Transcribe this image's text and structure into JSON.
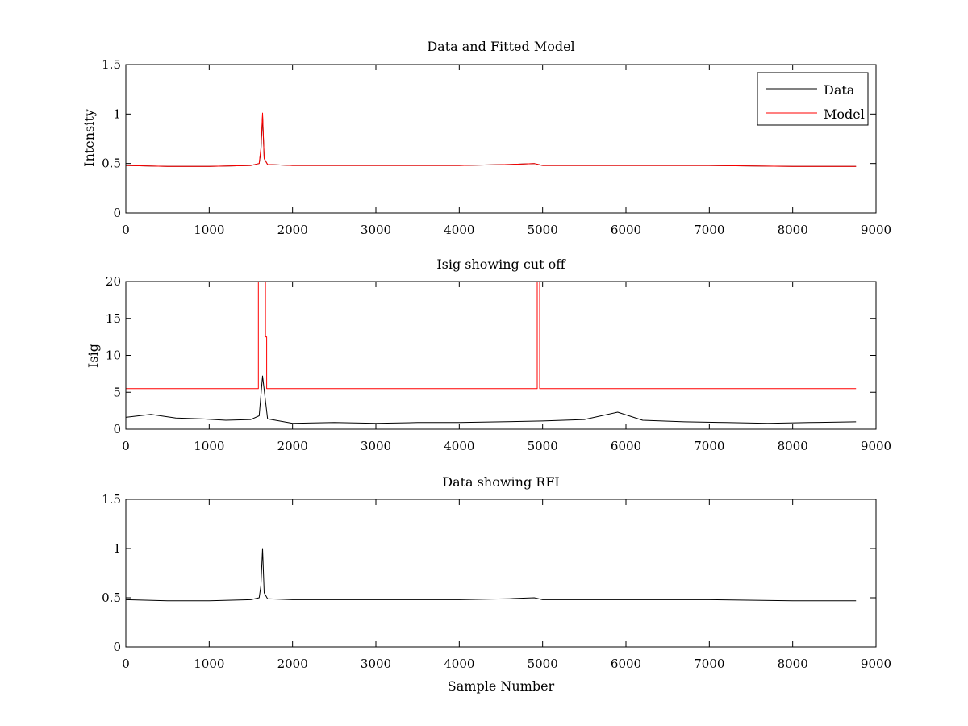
{
  "chart_data": [
    {
      "type": "line",
      "title": "Data and Fitted Model",
      "xlabel": "",
      "ylabel": "Intensity",
      "xlim": [
        0,
        9000
      ],
      "ylim": [
        0,
        1.5
      ],
      "xticks": [
        0,
        1000,
        2000,
        3000,
        4000,
        5000,
        6000,
        7000,
        8000,
        9000
      ],
      "xtick_labels": [
        "0",
        "1000",
        "2000",
        "3000",
        "4000",
        "5000",
        "6000",
        "7000",
        "8000",
        "9000"
      ],
      "yticks": [
        0,
        0.5,
        1,
        1.5
      ],
      "ytick_labels": [
        "0",
        "0.5",
        "1",
        "1.5"
      ],
      "grid": false,
      "legend": {
        "position": "top-right",
        "entries": [
          "Data",
          "Model"
        ]
      },
      "series": [
        {
          "name": "Data",
          "color": "#000000",
          "x": [
            0,
            500,
            1000,
            1500,
            1600,
            1620,
            1640,
            1660,
            1700,
            2000,
            3000,
            4000,
            4600,
            4900,
            5000,
            6000,
            7000,
            8000,
            8760
          ],
          "y": [
            0.48,
            0.47,
            0.47,
            0.48,
            0.5,
            0.62,
            0.98,
            0.55,
            0.49,
            0.48,
            0.48,
            0.48,
            0.49,
            0.5,
            0.48,
            0.48,
            0.48,
            0.47,
            0.47
          ]
        },
        {
          "name": "Model",
          "color": "#ff0000",
          "x": [
            0,
            500,
            1000,
            1500,
            1600,
            1620,
            1640,
            1660,
            1700,
            2000,
            3000,
            4000,
            4600,
            4900,
            5000,
            6000,
            7000,
            8000,
            8760
          ],
          "y": [
            0.48,
            0.47,
            0.47,
            0.48,
            0.5,
            0.65,
            1.01,
            0.55,
            0.49,
            0.48,
            0.48,
            0.48,
            0.49,
            0.5,
            0.48,
            0.48,
            0.48,
            0.47,
            0.47
          ]
        }
      ]
    },
    {
      "type": "line",
      "title": "Isig showing cut off",
      "xlabel": "",
      "ylabel": "Isig",
      "xlim": [
        0,
        9000
      ],
      "ylim": [
        0,
        20
      ],
      "xticks": [
        0,
        1000,
        2000,
        3000,
        4000,
        5000,
        6000,
        7000,
        8000,
        9000
      ],
      "xtick_labels": [
        "0",
        "1000",
        "2000",
        "3000",
        "4000",
        "5000",
        "6000",
        "7000",
        "8000",
        "9000"
      ],
      "yticks": [
        0,
        5,
        10,
        15,
        20
      ],
      "ytick_labels": [
        "0",
        "5",
        "10",
        "15",
        "20"
      ],
      "grid": false,
      "series": [
        {
          "color": "#000000",
          "x": [
            0,
            300,
            600,
            900,
            1200,
            1500,
            1600,
            1640,
            1700,
            2000,
            2500,
            3000,
            3500,
            4000,
            4500,
            5000,
            5500,
            5900,
            6200,
            6700,
            7200,
            7700,
            8200,
            8760
          ],
          "y": [
            1.6,
            2.0,
            1.5,
            1.4,
            1.2,
            1.3,
            1.8,
            7.2,
            1.4,
            0.8,
            0.9,
            0.8,
            0.9,
            0.9,
            1.0,
            1.1,
            1.3,
            2.3,
            1.2,
            1.0,
            0.9,
            0.8,
            0.9,
            1.0
          ]
        },
        {
          "color": "#ff0000",
          "x": [
            0,
            1590,
            1590,
            1605,
            1605,
            1675,
            1675,
            1690,
            1690,
            4935,
            4935,
            4950,
            4950,
            4965,
            4965,
            8760
          ],
          "y": [
            5.5,
            5.5,
            20,
            20,
            20,
            20,
            12.5,
            12.5,
            5.5,
            5.5,
            20,
            20,
            20,
            20,
            5.5,
            5.5
          ]
        }
      ]
    },
    {
      "type": "line",
      "title": "Data showing RFI",
      "xlabel": "Sample Number",
      "ylabel": "",
      "xlim": [
        0,
        9000
      ],
      "ylim": [
        0,
        1.5
      ],
      "xticks": [
        0,
        1000,
        2000,
        3000,
        4000,
        5000,
        6000,
        7000,
        8000,
        9000
      ],
      "xtick_labels": [
        "0",
        "1000",
        "2000",
        "3000",
        "4000",
        "5000",
        "6000",
        "7000",
        "8000",
        "9000"
      ],
      "yticks": [
        0,
        0.5,
        1,
        1.5
      ],
      "ytick_labels": [
        "0",
        "0.5",
        "1",
        "1.5"
      ],
      "grid": false,
      "series": [
        {
          "color": "#000000",
          "x": [
            0,
            500,
            1000,
            1500,
            1600,
            1620,
            1640,
            1660,
            1700,
            2000,
            3000,
            4000,
            4600,
            4900,
            5000,
            6000,
            7000,
            8000,
            8760
          ],
          "y": [
            0.48,
            0.47,
            0.47,
            0.48,
            0.5,
            0.62,
            1.0,
            0.55,
            0.49,
            0.48,
            0.48,
            0.48,
            0.49,
            0.5,
            0.48,
            0.48,
            0.48,
            0.47,
            0.47
          ]
        }
      ]
    }
  ]
}
